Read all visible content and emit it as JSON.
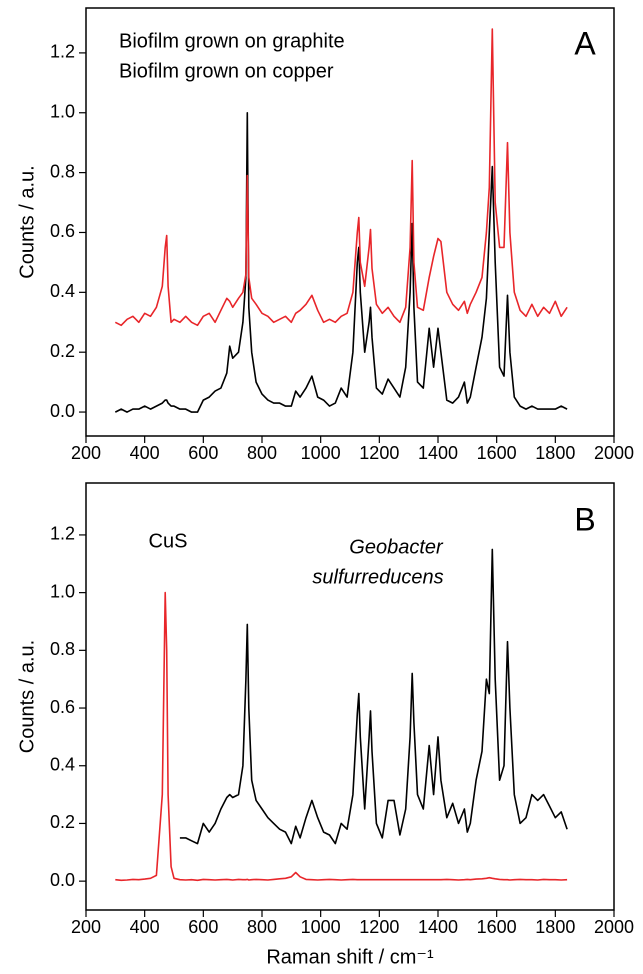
{
  "chart_data": [
    {
      "type": "line",
      "ylabel": "Counts / a.u.",
      "x": [
        300,
        320,
        340,
        360,
        380,
        400,
        420,
        440,
        460,
        470,
        475,
        480,
        490,
        500,
        520,
        540,
        560,
        580,
        600,
        620,
        640,
        660,
        680,
        690,
        700,
        720,
        735,
        745,
        750,
        755,
        765,
        780,
        800,
        820,
        840,
        860,
        880,
        900,
        915,
        930,
        950,
        970,
        990,
        1010,
        1030,
        1050,
        1070,
        1090,
        1110,
        1125,
        1130,
        1135,
        1150,
        1165,
        1170,
        1175,
        1190,
        1210,
        1230,
        1250,
        1270,
        1290,
        1305,
        1312,
        1318,
        1330,
        1350,
        1370,
        1385,
        1400,
        1410,
        1430,
        1450,
        1470,
        1490,
        1500,
        1510,
        1530,
        1550,
        1565,
        1575,
        1585,
        1595,
        1610,
        1625,
        1637,
        1645,
        1660,
        1680,
        1700,
        1720,
        1740,
        1760,
        1780,
        1800,
        1820,
        1840
      ],
      "series": [
        {
          "name": "Biofilm grown on graphite",
          "color": "#000000",
          "values": [
            0,
            0.01,
            0,
            0.01,
            0.01,
            0.02,
            0.01,
            0.02,
            0.03,
            0.04,
            0.04,
            0.03,
            0.02,
            0.02,
            0.01,
            0.01,
            0,
            0,
            0.04,
            0.05,
            0.07,
            0.08,
            0.13,
            0.22,
            0.18,
            0.2,
            0.3,
            0.45,
            1.0,
            0.35,
            0.2,
            0.1,
            0.06,
            0.04,
            0.03,
            0.03,
            0.02,
            0.02,
            0.07,
            0.05,
            0.08,
            0.12,
            0.05,
            0.04,
            0.02,
            0.03,
            0.08,
            0.05,
            0.2,
            0.5,
            0.55,
            0.4,
            0.2,
            0.3,
            0.35,
            0.25,
            0.08,
            0.06,
            0.11,
            0.08,
            0.05,
            0.15,
            0.4,
            0.63,
            0.35,
            0.1,
            0.08,
            0.28,
            0.15,
            0.28,
            0.2,
            0.04,
            0.03,
            0.05,
            0.1,
            0.03,
            0.05,
            0.15,
            0.25,
            0.38,
            0.6,
            0.82,
            0.5,
            0.15,
            0.12,
            0.39,
            0.2,
            0.05,
            0.02,
            0.01,
            0.02,
            0.01,
            0.01,
            0.01,
            0.01,
            0.02,
            0.01
          ]
        },
        {
          "name": "Biofilm grown on copper",
          "color": "#e8262a",
          "values": [
            0.3,
            0.29,
            0.31,
            0.32,
            0.3,
            0.33,
            0.32,
            0.35,
            0.42,
            0.55,
            0.59,
            0.42,
            0.3,
            0.31,
            0.3,
            0.32,
            0.3,
            0.29,
            0.32,
            0.33,
            0.3,
            0.34,
            0.38,
            0.37,
            0.35,
            0.38,
            0.4,
            0.46,
            0.79,
            0.45,
            0.38,
            0.36,
            0.33,
            0.32,
            0.3,
            0.31,
            0.32,
            0.3,
            0.33,
            0.34,
            0.36,
            0.39,
            0.34,
            0.3,
            0.31,
            0.3,
            0.32,
            0.33,
            0.4,
            0.6,
            0.65,
            0.5,
            0.42,
            0.55,
            0.61,
            0.48,
            0.36,
            0.33,
            0.35,
            0.32,
            0.3,
            0.35,
            0.55,
            0.84,
            0.5,
            0.35,
            0.34,
            0.45,
            0.52,
            0.58,
            0.57,
            0.4,
            0.36,
            0.34,
            0.37,
            0.33,
            0.36,
            0.4,
            0.45,
            0.6,
            0.75,
            1.28,
            0.7,
            0.55,
            0.55,
            0.9,
            0.6,
            0.4,
            0.34,
            0.32,
            0.36,
            0.32,
            0.35,
            0.33,
            0.37,
            0.32,
            0.35
          ]
        }
      ],
      "xlim": [
        200,
        2000
      ],
      "xticks": [
        200,
        400,
        600,
        800,
        1000,
        1200,
        1400,
        1600,
        1800,
        2000
      ],
      "ylim": [
        -0.08,
        1.35
      ],
      "yticks": [
        {
          "value": 0,
          "label": "0.0"
        },
        0.2,
        0.4,
        0.6,
        0.8,
        {
          "value": 1,
          "label": "1.0"
        },
        1.2
      ],
      "annotations": [
        {
          "text": "A"
        }
      ]
    },
    {
      "type": "line",
      "xlabel": "Raman shift / cm⁻¹",
      "ylabel": "Counts / a.u.",
      "x": [
        300,
        320,
        340,
        360,
        380,
        400,
        420,
        440,
        460,
        470,
        475,
        480,
        490,
        500,
        520,
        540,
        560,
        580,
        600,
        620,
        640,
        660,
        680,
        690,
        700,
        720,
        735,
        745,
        750,
        755,
        765,
        780,
        800,
        820,
        840,
        860,
        880,
        900,
        915,
        930,
        950,
        970,
        990,
        1010,
        1030,
        1050,
        1070,
        1090,
        1110,
        1125,
        1130,
        1135,
        1150,
        1165,
        1170,
        1175,
        1190,
        1210,
        1230,
        1250,
        1270,
        1290,
        1305,
        1312,
        1318,
        1330,
        1350,
        1370,
        1385,
        1400,
        1410,
        1430,
        1450,
        1470,
        1490,
        1500,
        1510,
        1530,
        1550,
        1565,
        1575,
        1585,
        1595,
        1610,
        1625,
        1637,
        1645,
        1660,
        1680,
        1700,
        1720,
        1740,
        1760,
        1780,
        1800,
        1820,
        1840
      ],
      "series": [
        {
          "color": "#000000",
          "values": [
            null,
            null,
            null,
            null,
            null,
            null,
            null,
            null,
            null,
            null,
            null,
            null,
            null,
            null,
            0.15,
            0.15,
            0.14,
            0.13,
            0.2,
            0.17,
            0.2,
            0.25,
            0.29,
            0.3,
            0.29,
            0.3,
            0.4,
            0.7,
            0.89,
            0.6,
            0.35,
            0.28,
            0.25,
            0.22,
            0.2,
            0.18,
            0.17,
            0.13,
            0.19,
            0.15,
            0.22,
            0.28,
            0.22,
            0.17,
            0.16,
            0.13,
            0.2,
            0.18,
            0.3,
            0.58,
            0.65,
            0.5,
            0.25,
            0.5,
            0.59,
            0.45,
            0.2,
            0.15,
            0.28,
            0.28,
            0.16,
            0.25,
            0.5,
            0.72,
            0.55,
            0.3,
            0.25,
            0.47,
            0.3,
            0.5,
            0.35,
            0.22,
            0.27,
            0.2,
            0.25,
            0.17,
            0.2,
            0.35,
            0.45,
            0.7,
            0.65,
            1.15,
            0.7,
            0.35,
            0.4,
            0.83,
            0.6,
            0.3,
            0.2,
            0.22,
            0.3,
            0.28,
            0.3,
            0.26,
            0.22,
            0.24,
            0.18
          ]
        },
        {
          "color": "#e8262a",
          "values": [
            0.005,
            0.003,
            0.004,
            0.006,
            0.005,
            0.007,
            0.01,
            0.02,
            0.3,
            1.0,
            0.8,
            0.3,
            0.05,
            0.01,
            0.005,
            0.004,
            0.005,
            0.003,
            0.006,
            0.005,
            0.004,
            0.005,
            0.006,
            0.005,
            0.004,
            0.006,
            0.005,
            0.005,
            0.006,
            0.004,
            0.005,
            0.006,
            0.005,
            0.004,
            0.006,
            0.008,
            0.01,
            0.015,
            0.03,
            0.015,
            0.006,
            0.005,
            0.004,
            0.005,
            0.006,
            0.005,
            0.004,
            0.005,
            0.006,
            0.005,
            0.005,
            0.005,
            0.005,
            0.005,
            0.005,
            0.005,
            0.005,
            0.005,
            0.005,
            0.005,
            0.005,
            0.005,
            0.005,
            0.005,
            0.005,
            0.005,
            0.005,
            0.005,
            0.005,
            0.005,
            0.005,
            0.006,
            0.005,
            0.004,
            0.005,
            0.006,
            0.005,
            0.007,
            0.008,
            0.01,
            0.012,
            0.01,
            0.008,
            0.006,
            0.005,
            0.005,
            0.004,
            0.005,
            0.006,
            0.005,
            0.005,
            0.004,
            0.006,
            0.005,
            0.005,
            0.004,
            0.005
          ]
        }
      ],
      "xlim": [
        200,
        2000
      ],
      "xticks": [
        200,
        400,
        600,
        800,
        1000,
        1200,
        1400,
        1600,
        1800,
        2000
      ],
      "ylim": [
        -0.1,
        1.38
      ],
      "yticks": [
        {
          "value": 0,
          "label": "0.0"
        },
        0.2,
        0.4,
        0.6,
        0.8,
        {
          "value": 1,
          "label": "1.0"
        },
        1.2
      ],
      "annotations": [
        {
          "text": "CuS",
          "color": "#e8262a"
        },
        {
          "text": "Geobacter",
          "style": "italic"
        },
        {
          "text": "sulfurreducens",
          "style": "italic"
        },
        {
          "text": "B"
        }
      ]
    }
  ]
}
